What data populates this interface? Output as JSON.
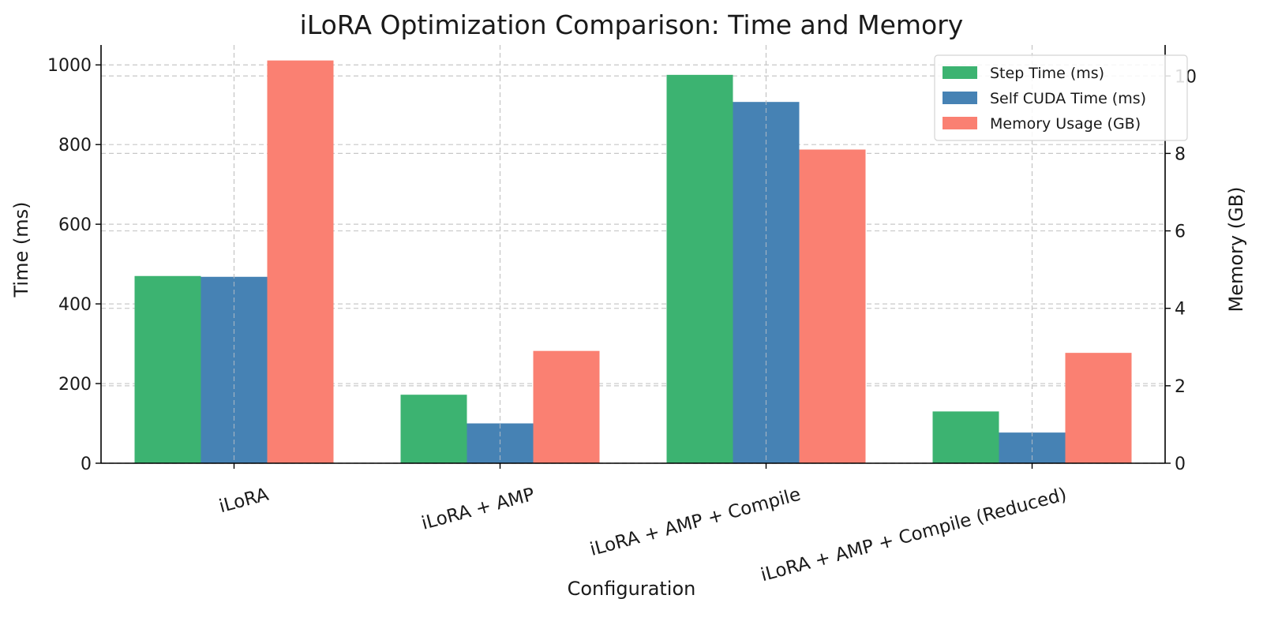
{
  "chart_data": {
    "type": "bar",
    "title": "iLoRA Optimization Comparison: Time and Memory",
    "xlabel": "Configuration",
    "ylabel": "Time (ms)",
    "y2label": "Memory (GB)",
    "categories": [
      "iLoRA",
      "iLoRA + AMP",
      "iLoRA + AMP + Compile",
      "iLoRA + AMP + Compile (Reduced)"
    ],
    "series": [
      {
        "name": "Step Time (ms)",
        "axis": "left",
        "color": "#3cb371",
        "values": [
          470,
          172,
          975,
          130
        ]
      },
      {
        "name": "Self CUDA Time (ms)",
        "axis": "left",
        "color": "#4682b4",
        "values": [
          468,
          100,
          907,
          77
        ]
      },
      {
        "name": "Memory Usage (GB)",
        "axis": "right",
        "color": "#fa8072",
        "values": [
          10.4,
          2.9,
          8.1,
          2.85
        ]
      }
    ],
    "ylim": [
      0,
      1050
    ],
    "y2lim": [
      0,
      10.8
    ],
    "yticks": [
      0,
      200,
      400,
      600,
      800,
      1000
    ],
    "y2ticks": [
      0,
      2,
      4,
      6,
      8,
      10
    ],
    "grid": true,
    "legend_position": "top-right"
  }
}
